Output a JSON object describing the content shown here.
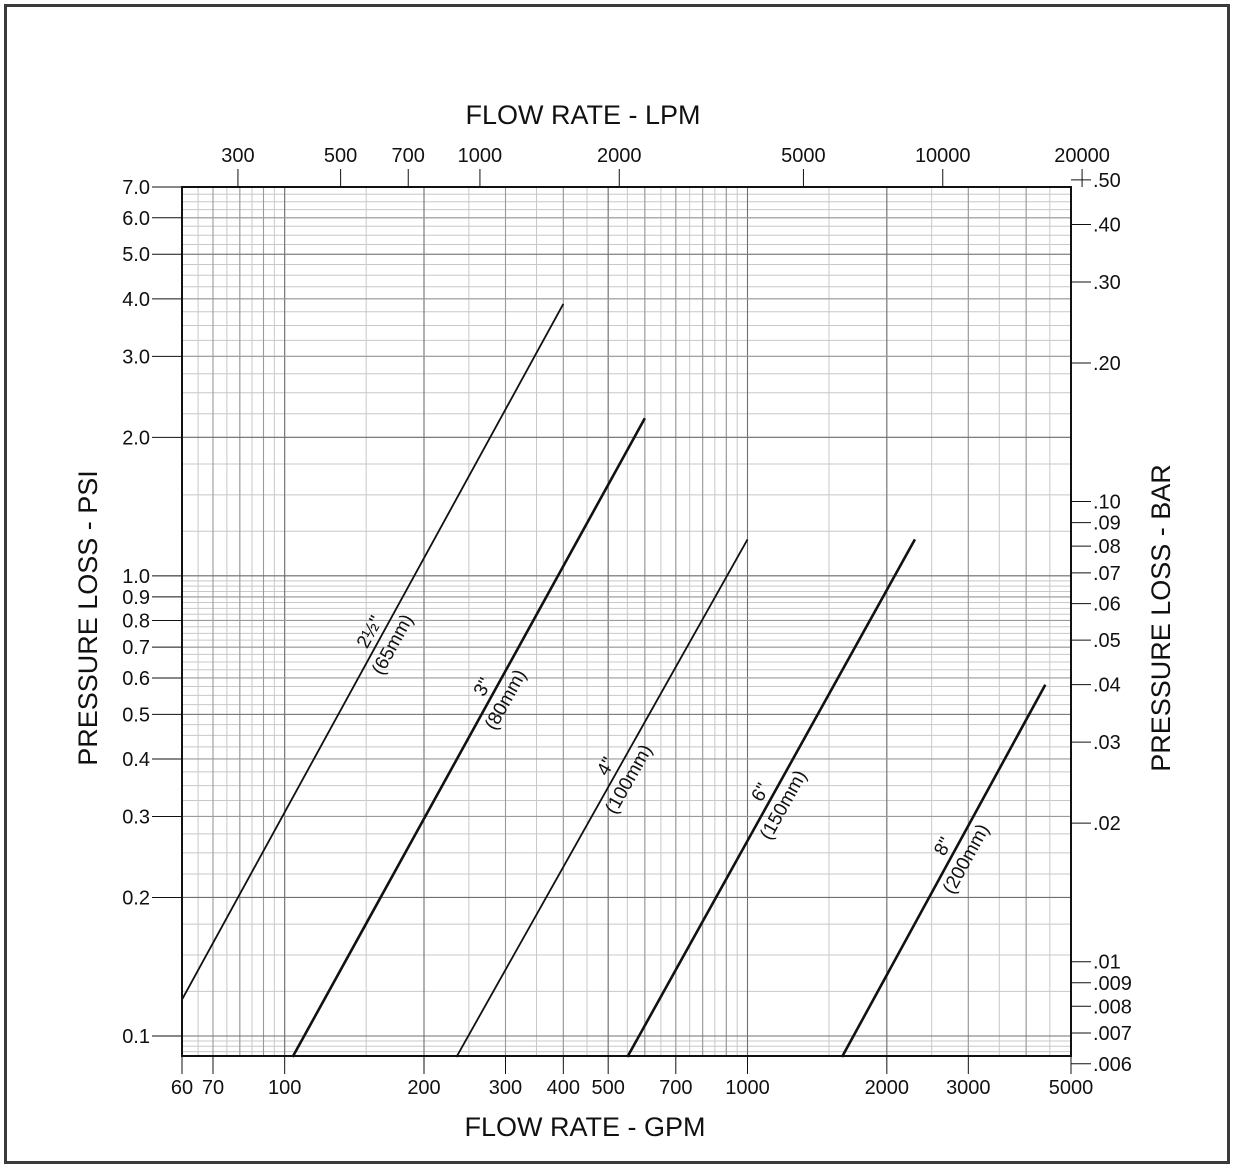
{
  "chart_data": {
    "type": "line",
    "x_scale": "log",
    "y_scale": "log",
    "grid": true,
    "top_title": "FLOW RATE - LPM",
    "xlabel": "FLOW RATE - GPM",
    "ylabel": "PRESSURE LOSS - PSI",
    "ylabel_right": "PRESSURE LOSS - BAR",
    "xlim": [
      60,
      5000
    ],
    "ylim": [
      0.09,
      7.0
    ],
    "x_ticks": [
      "60",
      "70",
      "100",
      "200",
      "300",
      "400",
      "500",
      "700",
      "1000",
      "2000",
      "3000",
      "5000"
    ],
    "y_ticks": [
      "7.0",
      "6.0",
      "5.0",
      "4.0",
      "3.0",
      "2.0",
      "1.0",
      "0.9",
      "0.8",
      "0.7",
      "0.6",
      "0.5",
      "0.4",
      "0.3",
      "0.2",
      "0.1"
    ],
    "top_ticks": [
      "300",
      "500",
      "700",
      "1000",
      "2000",
      "5000",
      "10000",
      "20000"
    ],
    "right_ticks": [
      ".50",
      ".40",
      ".30",
      ".20",
      ".10",
      ".09",
      ".08",
      ".07",
      ".06",
      ".05",
      ".04",
      ".03",
      ".02",
      ".01",
      ".009",
      ".008",
      ".007",
      ".006"
    ],
    "series": [
      {
        "name": "2½\"",
        "name2": "(65mm)",
        "x": [
          60,
          400
        ],
        "y": [
          0.12,
          3.9
        ],
        "width": 1.8
      },
      {
        "name": "3\"",
        "name2": "(80mm)",
        "x": [
          104,
          600
        ],
        "y": [
          0.09,
          2.2
        ],
        "width": 2.6
      },
      {
        "name": "4\"",
        "name2": "(100mm)",
        "x": [
          235,
          1000
        ],
        "y": [
          0.09,
          1.2
        ],
        "width": 1.8
      },
      {
        "name": "6\"",
        "name2": "(150mm)",
        "x": [
          550,
          2300
        ],
        "y": [
          0.09,
          1.2
        ],
        "width": 2.6
      },
      {
        "name": "8\"",
        "name2": "(200mm)",
        "x": [
          1600,
          4400
        ],
        "y": [
          0.09,
          0.58
        ],
        "width": 2.6
      }
    ]
  }
}
